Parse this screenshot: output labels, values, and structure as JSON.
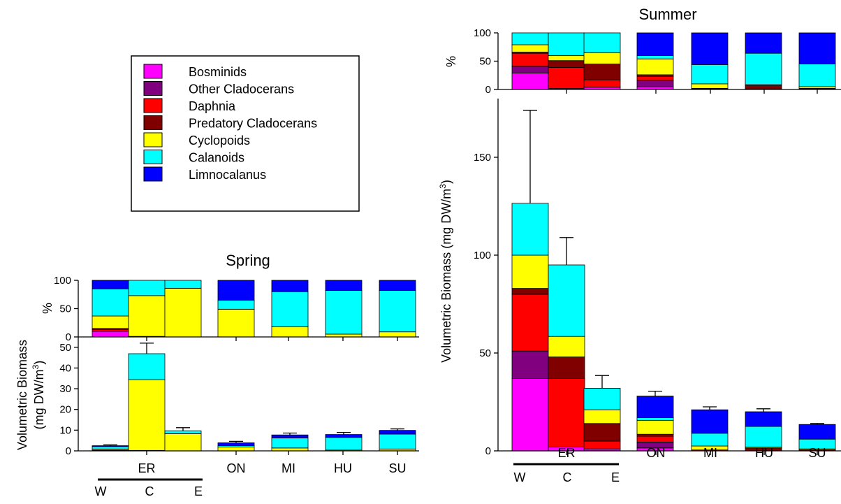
{
  "legend": {
    "entries": [
      {
        "name": "Bosminids",
        "color": "#ff00ff"
      },
      {
        "name": "Other Cladocerans",
        "color": "#800080"
      },
      {
        "name": "Daphnia",
        "color": "#ff0000"
      },
      {
        "name": "Predatory Cladocerans",
        "color": "#800000"
      },
      {
        "name": "Cyclopoids",
        "color": "#ffff00"
      },
      {
        "name": "Calanoids",
        "color": "#00ffff"
      },
      {
        "name": "Limnocalanus",
        "color": "#0000ff"
      }
    ]
  },
  "chart_data": [
    {
      "type": "bar",
      "stacked": true,
      "title": "Spring",
      "categories": [
        "W",
        "C",
        "E",
        "ON",
        "MI",
        "HU",
        "SU"
      ],
      "category_labels": [
        "ER",
        "ON",
        "MI",
        "HU",
        "SU"
      ],
      "er_sub_labels": [
        "W",
        "C",
        "E"
      ],
      "series_names": [
        "Bosminids",
        "Other Cladocerans",
        "Daphnia",
        "Predatory Cladocerans",
        "Cyclopoids",
        "Calanoids",
        "Limnocalanus"
      ],
      "percent_panel": {
        "ylabel": "%",
        "ylim": [
          0,
          100
        ],
        "yticks": [
          0,
          50,
          100
        ],
        "values": [
          [
            10,
            0,
            3,
            2,
            22,
            48,
            15
          ],
          [
            0,
            0,
            0,
            1,
            72,
            27,
            0
          ],
          [
            0,
            0,
            0,
            0,
            86,
            14,
            0
          ],
          [
            0,
            0,
            0,
            0,
            49,
            16,
            35
          ],
          [
            0,
            0,
            0,
            0,
            18,
            62,
            20
          ],
          [
            0,
            0,
            0,
            0,
            5,
            77,
            18
          ],
          [
            0,
            0,
            0,
            0,
            9,
            73,
            18
          ]
        ]
      },
      "biomass_panel": {
        "ylabel": "Volumetric Biomass",
        "ylabel2": "(mg DW/m",
        "ylabel_sup": "3",
        "ylabel_end": ")",
        "ylim": [
          0,
          55
        ],
        "yticks": [
          0,
          10,
          20,
          30,
          40,
          50
        ],
        "values": [
          [
            0.25,
            0,
            0.05,
            0.05,
            0.55,
            1.2,
            0.4
          ],
          [
            0,
            0,
            0,
            0.2,
            34.2,
            12.5,
            0
          ],
          [
            0,
            0,
            0,
            0,
            8.3,
            1.4,
            0
          ],
          [
            0,
            0,
            0,
            0,
            1.9,
            0.6,
            1.4
          ],
          [
            0,
            0,
            0,
            0,
            1.4,
            4.8,
            1.5
          ],
          [
            0,
            0,
            0,
            0,
            0.4,
            6.1,
            1.4
          ],
          [
            0,
            0,
            0,
            0,
            0.9,
            7.2,
            1.8
          ]
        ],
        "error_tops": [
          2.9,
          52,
          11.2,
          4.6,
          8.6,
          8.9,
          10.6
        ]
      }
    },
    {
      "type": "bar",
      "stacked": true,
      "title": "Summer",
      "categories": [
        "W",
        "C",
        "E",
        "ON",
        "MI",
        "HU",
        "SU"
      ],
      "category_labels": [
        "ER",
        "ON",
        "MI",
        "HU",
        "SU"
      ],
      "er_sub_labels": [
        "W",
        "C",
        "E"
      ],
      "series_names": [
        "Bosminids",
        "Other Cladocerans",
        "Daphnia",
        "Predatory Cladocerans",
        "Cyclopoids",
        "Calanoids",
        "Limnocalanus"
      ],
      "percent_panel": {
        "ylabel": "%",
        "ylim": [
          0,
          100
        ],
        "yticks": [
          0,
          50,
          100
        ],
        "values": [
          [
            29,
            12,
            23,
            2,
            13,
            21,
            0
          ],
          [
            2,
            0,
            37,
            12,
            9,
            40,
            0
          ],
          [
            4,
            0,
            13,
            28,
            20,
            35,
            0
          ],
          [
            5,
            11,
            7,
            3,
            28,
            6,
            40
          ],
          [
            0,
            0,
            0,
            2,
            8,
            34,
            56
          ],
          [
            0,
            0,
            1,
            6,
            2,
            55,
            36
          ],
          [
            0,
            0,
            0,
            2,
            3,
            40,
            55
          ]
        ]
      },
      "biomass_panel": {
        "ylabel": "Volumetric Biomass (mg DW/m",
        "ylabel_sup": "3",
        "ylabel_end": ")",
        "ylim": [
          0,
          180
        ],
        "yticks": [
          0,
          50,
          100,
          150
        ],
        "values": [
          [
            37,
            14,
            29,
            3,
            17,
            26.5,
            0
          ],
          [
            2,
            0,
            35,
            11,
            10.5,
            36.5,
            0
          ],
          [
            1,
            0,
            4,
            9,
            7,
            11,
            0
          ],
          [
            1.5,
            3,
            3,
            1,
            7,
            1.5,
            11
          ],
          [
            0,
            0,
            0,
            0.5,
            2,
            6.5,
            12
          ],
          [
            0,
            0,
            0,
            1.5,
            0.5,
            10.5,
            7.5
          ],
          [
            0,
            0,
            0,
            0.5,
            0.5,
            5,
            7.5
          ]
        ],
        "error_tops": [
          174,
          109,
          38.5,
          30.5,
          22.5,
          21.5,
          14
        ]
      }
    }
  ]
}
